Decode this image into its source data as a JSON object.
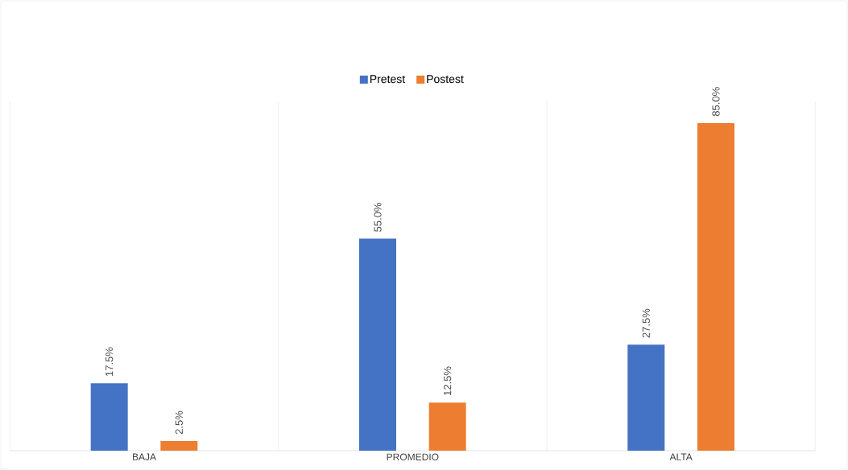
{
  "chart_data": {
    "type": "bar",
    "categories": [
      "BAJA",
      "PROMEDIO",
      "ALTA"
    ],
    "series": [
      {
        "name": "Pretest",
        "color": "#4472c4",
        "values": [
          17.5,
          55.0,
          27.5
        ],
        "value_labels": [
          "17.5%",
          "55.0%",
          "27.5%"
        ]
      },
      {
        "name": "Postest",
        "color": "#ed7d31",
        "values": [
          2.5,
          12.5,
          85.0
        ],
        "value_labels": [
          "2.5%",
          "12.5%",
          "85.0%"
        ]
      }
    ],
    "grid": "x",
    "legend": "top"
  }
}
